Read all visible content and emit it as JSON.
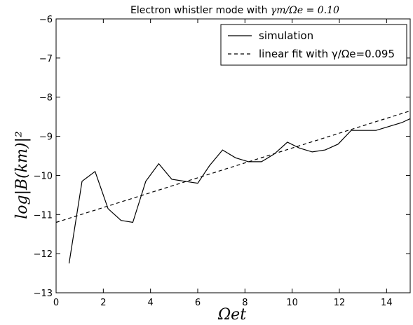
{
  "chart_data": {
    "type": "line",
    "title": {
      "prefix": "Electron whistler mode with ",
      "math": "γm/Ωe = 0.10"
    },
    "xlabel": "Ωet",
    "ylabel": "log|B(km)|²",
    "xlim": [
      0,
      15
    ],
    "ylim": [
      -13,
      -6
    ],
    "xticks": [
      0,
      2,
      4,
      6,
      8,
      10,
      12,
      14
    ],
    "yticks": [
      -13,
      -12,
      -11,
      -10,
      -9,
      -8,
      -7,
      -6
    ],
    "legend_position": "top-right",
    "grid": false,
    "series": [
      {
        "name": "simulation",
        "style": "solid",
        "color": "#000000",
        "x": [
          0.55,
          1.1,
          1.65,
          2.2,
          2.75,
          3.25,
          3.8,
          4.35,
          4.9,
          5.45,
          6.0,
          6.5,
          7.05,
          7.6,
          8.15,
          8.7,
          9.25,
          9.8,
          10.3,
          10.85,
          11.4,
          11.95,
          12.5,
          13.0,
          13.55,
          14.1,
          14.65,
          15.0
        ],
        "y": [
          -12.25,
          -10.15,
          -9.9,
          -10.85,
          -11.15,
          -11.2,
          -10.15,
          -9.7,
          -10.1,
          -10.15,
          -10.2,
          -9.75,
          -9.35,
          -9.55,
          -9.65,
          -9.65,
          -9.45,
          -9.15,
          -9.3,
          -9.4,
          -9.35,
          -9.2,
          -8.85,
          -8.85,
          -8.85,
          -8.75,
          -8.65,
          -8.55
        ]
      },
      {
        "name": "linear fit with γ/Ωe=0.095",
        "style": "dashed",
        "color": "#000000",
        "x": [
          0,
          15
        ],
        "y": [
          -11.2,
          -8.35
        ]
      }
    ]
  }
}
